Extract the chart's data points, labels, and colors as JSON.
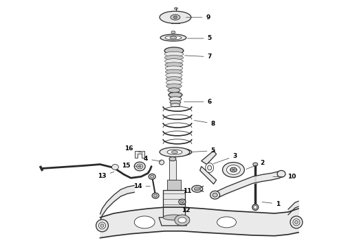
{
  "background_color": "#ffffff",
  "line_color": "#2a2a2a",
  "label_color": "#000000",
  "fill_light": "#e8e8e8",
  "fill_mid": "#c8c8c8",
  "fill_dark": "#999999",
  "figsize": [
    4.9,
    3.6
  ],
  "dpi": 100
}
